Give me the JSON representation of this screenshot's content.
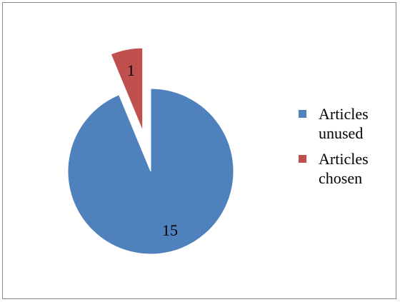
{
  "chart_data": {
    "type": "pie",
    "categories": [
      "Articles unused",
      "Articles chosen"
    ],
    "values": [
      15,
      1
    ],
    "data_labels": [
      "15",
      "1"
    ],
    "colors": [
      "#4F81BD",
      "#C0504D"
    ],
    "exploded": [
      false,
      true
    ],
    "legend_position": "right"
  },
  "legend": {
    "items": [
      {
        "line1": "Articles",
        "line2": "unused",
        "color": "#4F81BD"
      },
      {
        "line1": "Articles",
        "line2": "chosen",
        "color": "#C0504D"
      }
    ]
  }
}
